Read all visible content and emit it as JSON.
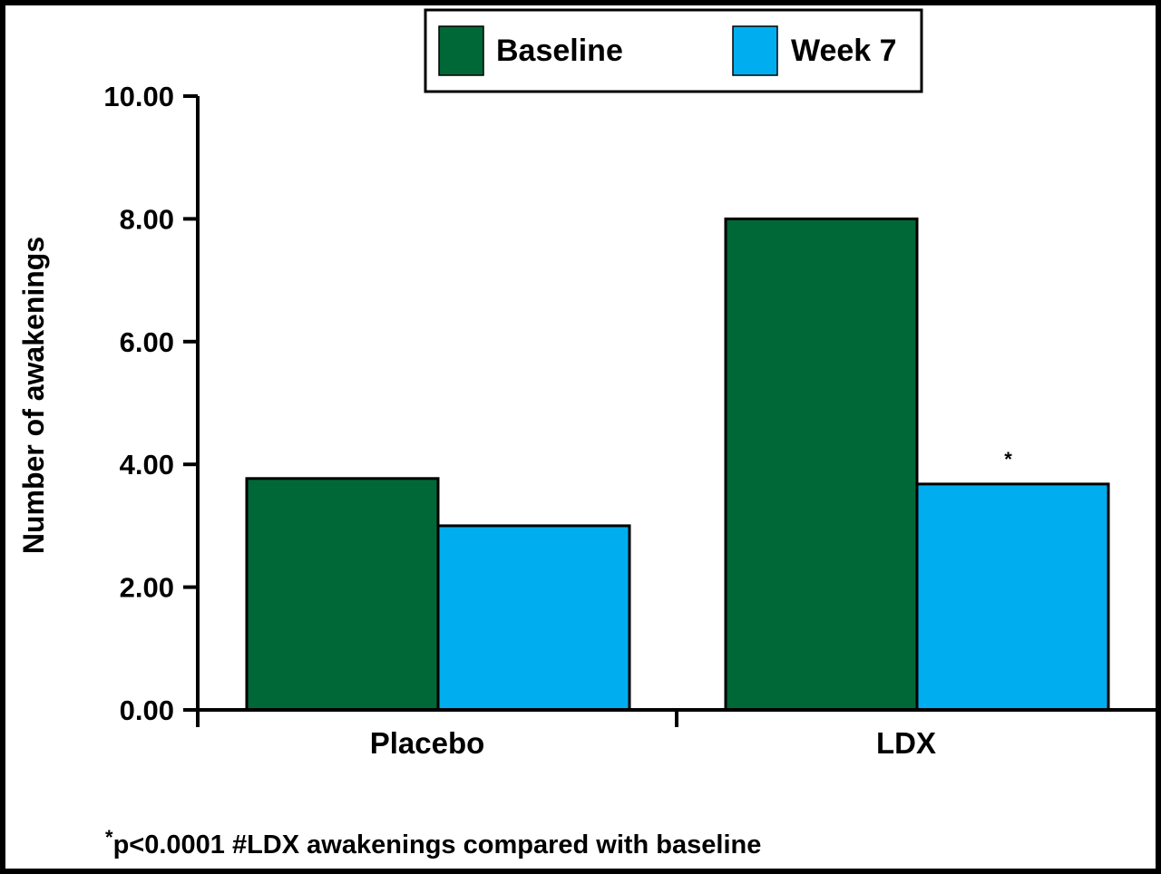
{
  "chart_data": {
    "type": "bar",
    "title": "",
    "xlabel": "",
    "ylabel": "Number of awakenings",
    "ylim": [
      0,
      10
    ],
    "yticks": [
      "0.00",
      "2.00",
      "4.00",
      "6.00",
      "8.00",
      "10.00"
    ],
    "categories": [
      "Placebo",
      "LDX"
    ],
    "series": [
      {
        "name": "Baseline",
        "values": [
          3.77,
          8.0
        ]
      },
      {
        "name": "Week 7",
        "values": [
          3.0,
          3.68
        ]
      }
    ],
    "legend": {
      "placement": "top-center",
      "entries": [
        "Baseline",
        "Week 7"
      ]
    },
    "annotations": [
      {
        "text": "*",
        "series": 1,
        "category": 1
      }
    ],
    "footnote_star": "*",
    "footnote": "p<0.0001 #LDX awakenings compared with baseline",
    "colors": {
      "Baseline": "#006837",
      "Week 7": "#00aeef"
    }
  }
}
